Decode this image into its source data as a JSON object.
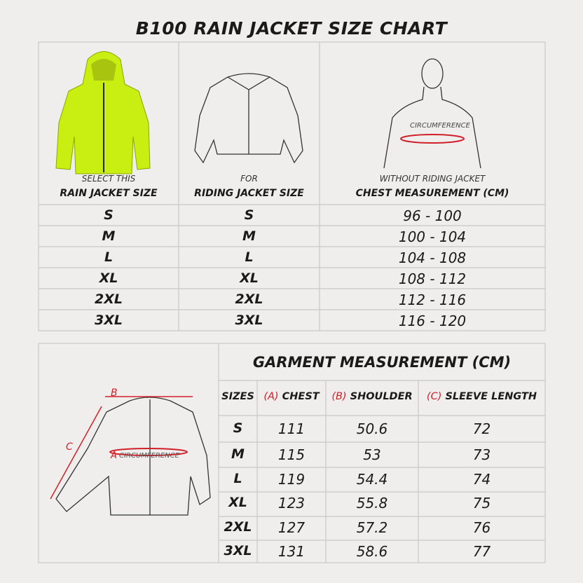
{
  "title": "B100 RAIN JACKET SIZE CHART",
  "top_table": {
    "headers": [
      {
        "small": "SELECT THIS",
        "label": "RAIN JACKET SIZE"
      },
      {
        "small": "FOR",
        "label": "RIDING JACKET SIZE"
      },
      {
        "small": "WITHOUT RIDING JACKET",
        "label": "CHEST MEASUREMENT (CM)"
      }
    ],
    "body_label": "CIRCUMFERENCE",
    "rows": [
      [
        "S",
        "S",
        "96 - 100"
      ],
      [
        "M",
        "M",
        "100 - 104"
      ],
      [
        "L",
        "L",
        "104 - 108"
      ],
      [
        "XL",
        "XL",
        "108 - 112"
      ],
      [
        "2XL",
        "2XL",
        "112 - 116"
      ],
      [
        "3XL",
        "3XL",
        "116 - 120"
      ]
    ]
  },
  "garment_table": {
    "title": "GARMENT MEASUREMENT (CM)",
    "diagram_labels": {
      "a": "A",
      "b": "B",
      "c": "C",
      "circumference": "CIRCUMFERENCE"
    },
    "headers": [
      {
        "label": "SIZES"
      },
      {
        "key": "(A)",
        "label": "CHEST"
      },
      {
        "key": "(B)",
        "label": "SHOULDER"
      },
      {
        "key": "(C)",
        "label": "SLEEVE LENGTH"
      }
    ],
    "rows": [
      [
        "S",
        "111",
        "50.6",
        "72"
      ],
      [
        "M",
        "115",
        "53",
        "73"
      ],
      [
        "L",
        "119",
        "54.4",
        "74"
      ],
      [
        "XL",
        "123",
        "55.8",
        "75"
      ],
      [
        "2XL",
        "127",
        "57.2",
        "76"
      ],
      [
        "3XL",
        "131",
        "58.6",
        "77"
      ]
    ]
  }
}
